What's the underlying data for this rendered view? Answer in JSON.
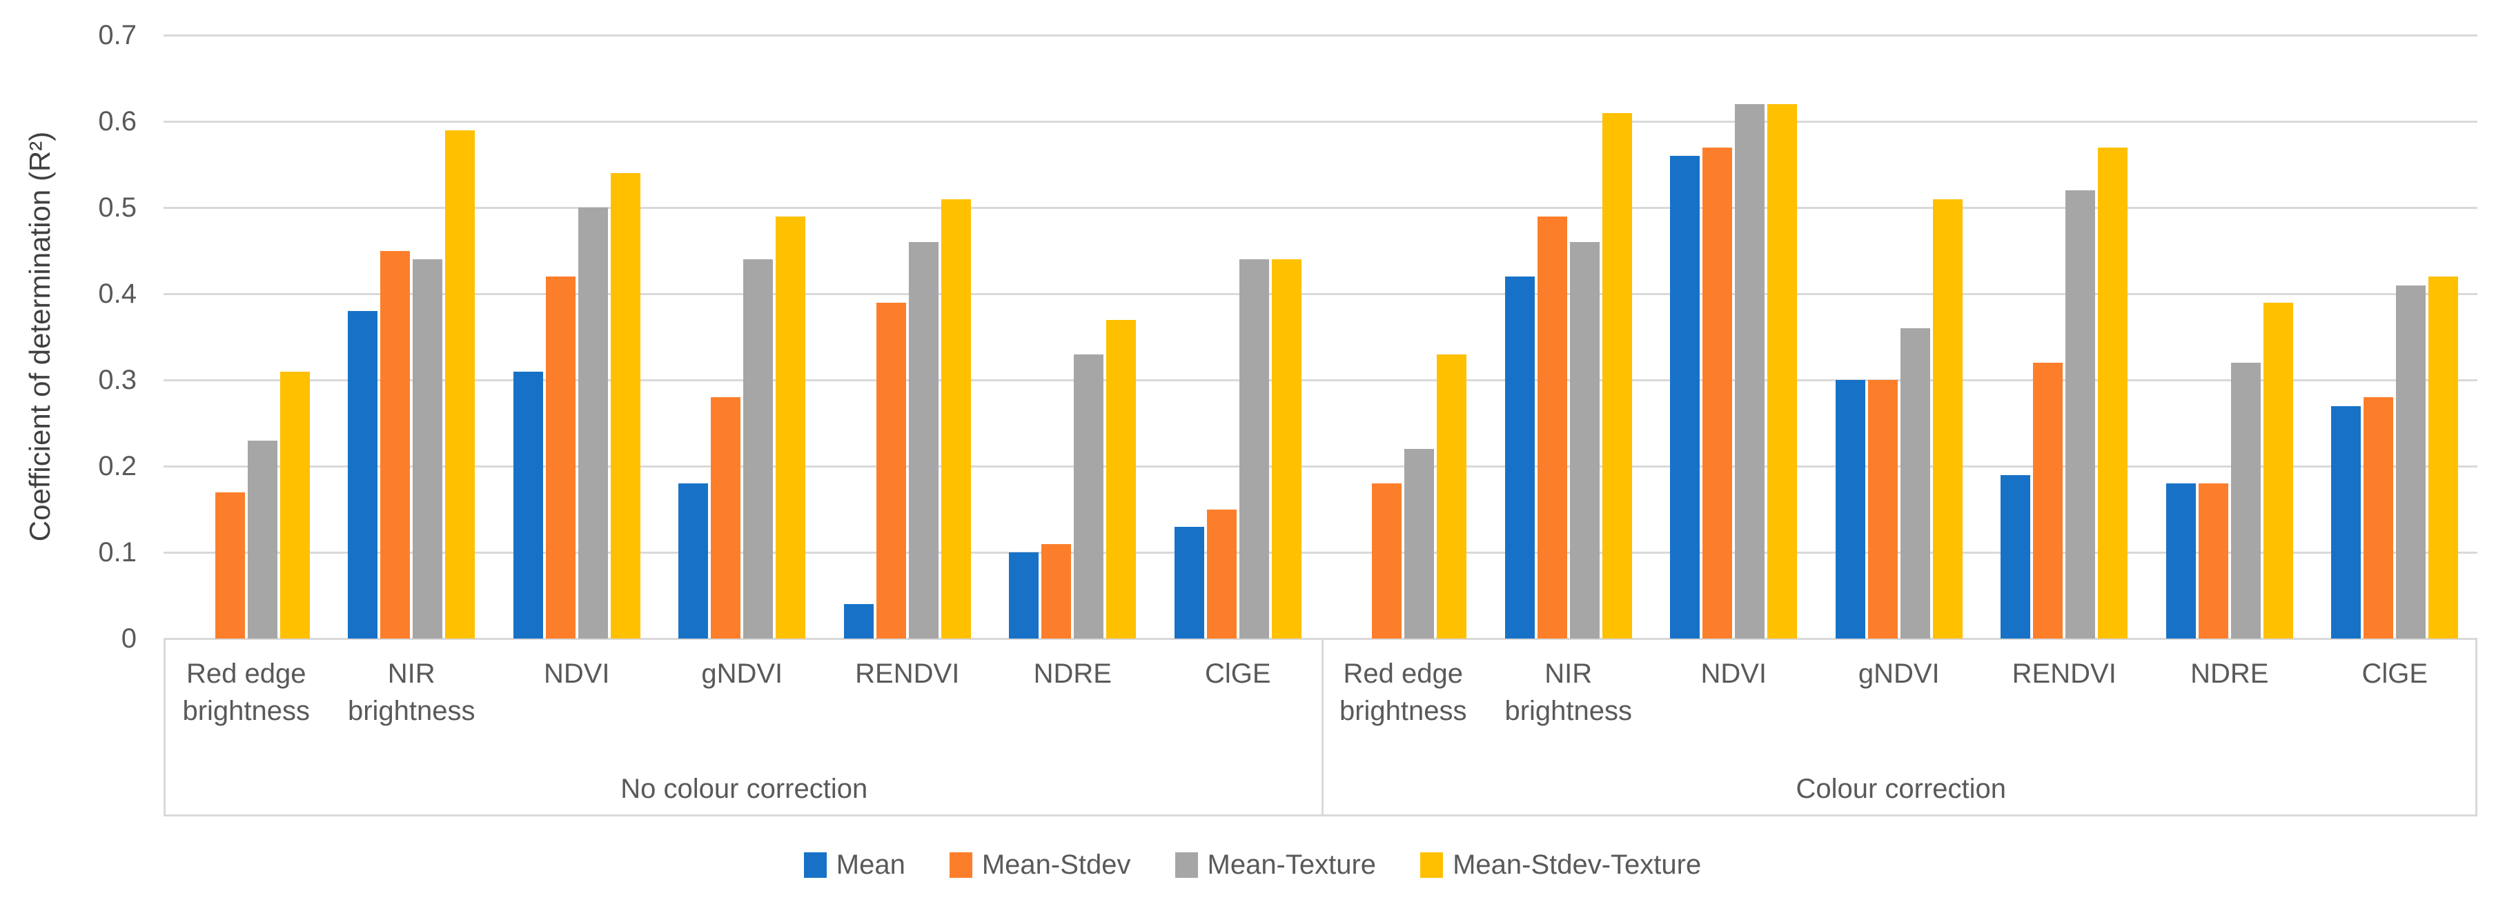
{
  "chart_data": {
    "type": "bar",
    "title": "",
    "ylabel": "Coefficient of determination (R²)",
    "xlabel": "",
    "ylim": [
      0,
      0.7
    ],
    "yticks": [
      "0",
      "0.1",
      "0.2",
      "0.3",
      "0.4",
      "0.5",
      "0.6",
      "0.7"
    ],
    "grid": true,
    "legend_position": "bottom",
    "colors": {
      "mean": "#1772C7",
      "mean_stdev": "#FD7E2A",
      "mean_texture": "#A6A6A6",
      "mean_stdev_texture": "#FFC000",
      "gridline": "#D9D9D9",
      "text": "#595959"
    },
    "groups": [
      {
        "label": "No colour correction",
        "categories": [
          "Red edge brightness",
          "NIR brightness",
          "NDVI",
          "gNDVI",
          "RENDVI",
          "NDRE",
          "ClGE"
        ]
      },
      {
        "label": "Colour correction",
        "categories": [
          "Red edge brightness",
          "NIR brightness",
          "NDVI",
          "gNDVI",
          "RENDVI",
          "NDRE",
          "ClGE"
        ]
      }
    ],
    "series": [
      {
        "name": "Mean",
        "color": "#1772C7",
        "values": [
          [
            0,
            0.38,
            0.31,
            0.18,
            0.04,
            0.1,
            0.13
          ],
          [
            0,
            0.42,
            0.56,
            0.3,
            0.19,
            0.18,
            0.27
          ]
        ]
      },
      {
        "name": "Mean-Stdev",
        "color": "#FD7E2A",
        "values": [
          [
            0.17,
            0.45,
            0.42,
            0.28,
            0.39,
            0.11,
            0.15
          ],
          [
            0.18,
            0.49,
            0.57,
            0.3,
            0.32,
            0.18,
            0.28
          ]
        ]
      },
      {
        "name": "Mean-Texture",
        "color": "#A6A6A6",
        "values": [
          [
            0.23,
            0.44,
            0.5,
            0.44,
            0.46,
            0.33,
            0.44
          ],
          [
            0.22,
            0.46,
            0.62,
            0.36,
            0.52,
            0.32,
            0.41
          ]
        ]
      },
      {
        "name": "Mean-Stdev-Texture",
        "color": "#FFC000",
        "values": [
          [
            0.31,
            0.59,
            0.54,
            0.49,
            0.51,
            0.37,
            0.44
          ],
          [
            0.33,
            0.61,
            0.62,
            0.51,
            0.57,
            0.39,
            0.42
          ]
        ]
      }
    ]
  }
}
